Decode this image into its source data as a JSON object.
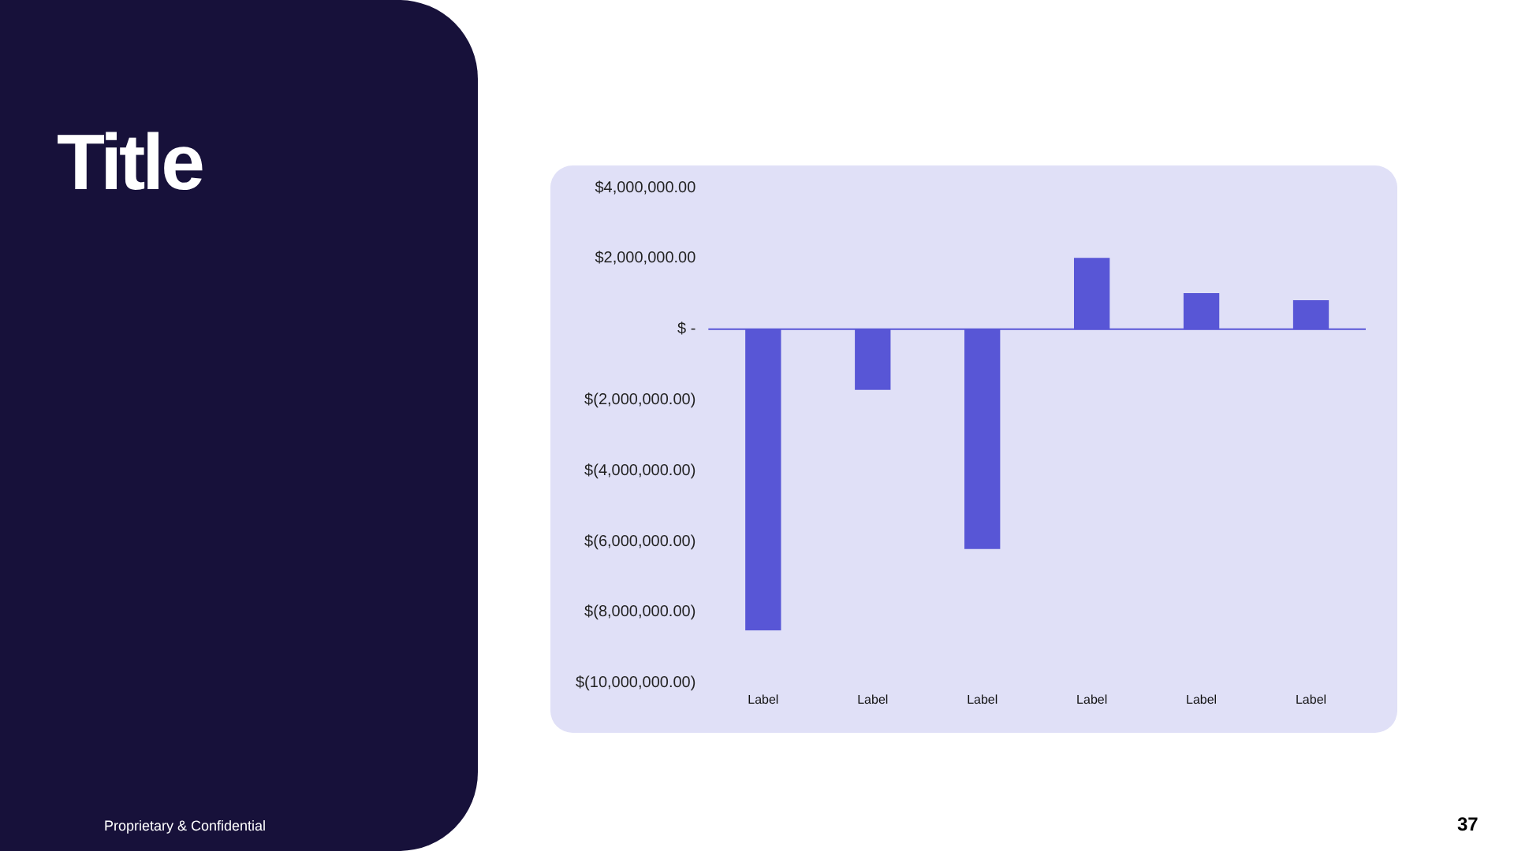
{
  "chart_data": {
    "type": "bar",
    "title": "Title",
    "categories": [
      "Label",
      "Label",
      "Label",
      "Label",
      "Label",
      "Label"
    ],
    "values": [
      -8500000,
      -1700000,
      -6200000,
      2000000,
      1000000,
      800000
    ],
    "color": "#5856d6",
    "ylim": [
      -10000000,
      4000000
    ],
    "yticks": [
      {
        "value": 4000000,
        "label": "$4,000,000.00"
      },
      {
        "value": 2000000,
        "label": "$2,000,000.00"
      },
      {
        "value": 0,
        "label": "$ -"
      },
      {
        "value": -2000000,
        "label": "$(2,000,000.00)"
      },
      {
        "value": -4000000,
        "label": "$(4,000,000.00)"
      },
      {
        "value": -6000000,
        "label": "$(6,000,000.00)"
      },
      {
        "value": -8000000,
        "label": "$(8,000,000.00)"
      },
      {
        "value": -10000000,
        "label": "$(10,000,000.00)"
      }
    ],
    "ref_lines": [
      {
        "axis": "y",
        "value": 0,
        "color": "#5856d6"
      }
    ],
    "grid": false,
    "legend": false,
    "annotations": [
      "Proprietary & Confidential",
      "37"
    ]
  }
}
